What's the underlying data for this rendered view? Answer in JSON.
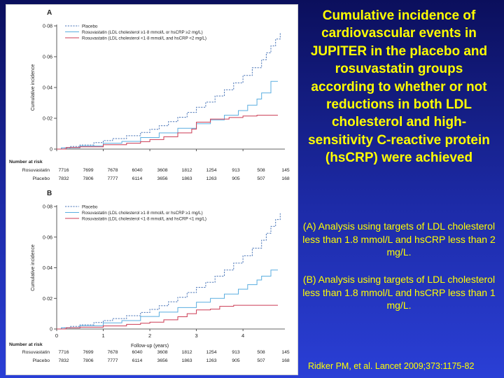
{
  "slide": {
    "title": "Cumulative incidence of cardiovascular events in JUPITER in the placebo and rosuvastatin groups according to whether or not reductions in both LDL cholesterol and high-sensitivity C-reactive protein (hsCRP) were achieved",
    "note_a": "(A) Analysis using targets of LDL cholesterol less than 1.8 mmol/L and hsCRP less than 2 mg/L.",
    "note_b": "(B) Analysis using targets of LDL cholesterol less than 1.8 mmol/L and hsCRP less than 1 mg/L.",
    "citation": "Ridker PM, et al. Lancet 2009;373:1175-82",
    "colors": {
      "background": "#1a2aa8",
      "text": "#ffff00"
    }
  },
  "chart_data": [
    {
      "type": "line",
      "panel_label": "A",
      "ylabel": "Cumulative incidence",
      "xlabel": "",
      "yticks": [
        "0",
        "0·02",
        "0·04",
        "0·06",
        "0·08"
      ],
      "ylim": [
        0,
        0.08
      ],
      "xlim": [
        0,
        4.9
      ],
      "show_xticks": false,
      "legend_position": "top-left",
      "series": [
        {
          "name": "Placebo",
          "color": "#4a76b8",
          "dashed": true,
          "x": [
            0,
            0.1,
            0.3,
            0.5,
            0.8,
            1.0,
            1.2,
            1.5,
            1.8,
            2.0,
            2.2,
            2.4,
            2.6,
            2.8,
            3.0,
            3.2,
            3.4,
            3.6,
            3.8,
            4.0,
            4.2,
            4.4,
            4.5,
            4.6,
            4.7,
            4.8
          ],
          "y": [
            0,
            0.0007,
            0.0017,
            0.0027,
            0.0042,
            0.0055,
            0.0068,
            0.0087,
            0.0108,
            0.0128,
            0.0152,
            0.0178,
            0.0207,
            0.0238,
            0.0272,
            0.0305,
            0.0345,
            0.0385,
            0.043,
            0.0478,
            0.0528,
            0.058,
            0.0625,
            0.067,
            0.0715,
            0.0755
          ]
        },
        {
          "name": "Rosuvastatin (LDL cholesterol ≥1·8 mmol/L or hsCRP ≥2 mg/L)",
          "color": "#5aaee0",
          "x": [
            0,
            0.1,
            0.5,
            1.0,
            1.4,
            1.8,
            2.2,
            2.6,
            3.0,
            3.3,
            3.6,
            3.9,
            4.1,
            4.3,
            4.4,
            4.6,
            4.75
          ],
          "y": [
            0,
            0.0008,
            0.002,
            0.0038,
            0.005,
            0.0075,
            0.0105,
            0.0135,
            0.0165,
            0.019,
            0.022,
            0.025,
            0.0285,
            0.0325,
            0.0365,
            0.044,
            0.044
          ]
        },
        {
          "name": "Rosuvastatin (LDL cholesterol <1·8 mmol/L and hsCRP <2 mg/L)",
          "color": "#cc3b53",
          "x": [
            0,
            0.2,
            0.5,
            1.0,
            1.5,
            1.8,
            2.0,
            2.3,
            2.6,
            2.9,
            3.0,
            3.3,
            3.7,
            4.0,
            4.3,
            4.75
          ],
          "y": [
            0,
            0.001,
            0.0015,
            0.0028,
            0.0038,
            0.0048,
            0.0062,
            0.008,
            0.0105,
            0.013,
            0.0175,
            0.0195,
            0.0205,
            0.0215,
            0.022,
            0.022
          ]
        }
      ],
      "risk_table": {
        "header": "Number at risk",
        "rows": [
          {
            "label": "Rosuvastatin",
            "values": [
              "7716",
              "7699",
              "7678",
              "6040",
              "3608",
              "1812",
              "1254",
              "913",
              "508",
              "145"
            ]
          },
          {
            "label": "Placebo",
            "values": [
              "7832",
              "7806",
              "7777",
              "6114",
              "3656",
              "1863",
              "1263",
              "905",
              "507",
              "168"
            ]
          }
        ]
      }
    },
    {
      "type": "line",
      "panel_label": "B",
      "ylabel": "Cumulative incidence",
      "xlabel": "Follow-up (years)",
      "yticks": [
        "0",
        "0·02",
        "0·04",
        "0·06",
        "0·08"
      ],
      "xticks": [
        "0",
        "1",
        "2",
        "3",
        "4"
      ],
      "ylim": [
        0,
        0.08
      ],
      "xlim": [
        0,
        4.9
      ],
      "show_xticks": true,
      "legend_position": "top-left",
      "series": [
        {
          "name": "Placebo",
          "color": "#4a76b8",
          "dashed": true,
          "x": [
            0,
            0.1,
            0.3,
            0.5,
            0.8,
            1.0,
            1.2,
            1.5,
            1.8,
            2.0,
            2.2,
            2.4,
            2.6,
            2.8,
            3.0,
            3.2,
            3.4,
            3.6,
            3.8,
            4.0,
            4.2,
            4.4,
            4.5,
            4.6,
            4.7,
            4.8
          ],
          "y": [
            0,
            0.0007,
            0.0017,
            0.0027,
            0.0042,
            0.0055,
            0.0068,
            0.0087,
            0.0108,
            0.0128,
            0.0152,
            0.0178,
            0.0207,
            0.0238,
            0.0272,
            0.0305,
            0.0345,
            0.0385,
            0.043,
            0.0478,
            0.0528,
            0.058,
            0.0625,
            0.067,
            0.0715,
            0.0755
          ]
        },
        {
          "name": "Rosuvastatin (LDL cholesterol ≥1·8 mmol/L or hsCRP ≥1 mg/L)",
          "color": "#5aaee0",
          "x": [
            0,
            0.1,
            0.5,
            1.0,
            1.4,
            1.8,
            2.2,
            2.6,
            3.0,
            3.3,
            3.6,
            3.9,
            4.1,
            4.3,
            4.4,
            4.6,
            4.75
          ],
          "y": [
            0,
            0.0008,
            0.0022,
            0.004,
            0.0055,
            0.0082,
            0.011,
            0.014,
            0.0175,
            0.02,
            0.0228,
            0.026,
            0.029,
            0.032,
            0.0345,
            0.0385,
            0.0385
          ]
        },
        {
          "name": "Rosuvastatin (LDL cholesterol <1·8 mmol/L and hsCRP <1 mg/L)",
          "color": "#cc3b53",
          "x": [
            0,
            0.2,
            0.5,
            1.0,
            1.5,
            1.8,
            2.0,
            2.3,
            2.6,
            2.8,
            3.0,
            3.3,
            3.5,
            3.8,
            4.1,
            4.75
          ],
          "y": [
            0,
            0.0008,
            0.0012,
            0.002,
            0.003,
            0.0038,
            0.0045,
            0.006,
            0.008,
            0.01,
            0.0125,
            0.013,
            0.0148,
            0.0155,
            0.0155,
            0.0155
          ]
        }
      ],
      "risk_table": {
        "header": "Number at risk",
        "rows": [
          {
            "label": "Rosuvastatin",
            "values": [
              "7716",
              "7699",
              "7678",
              "6040",
              "3608",
              "1812",
              "1254",
              "913",
              "508",
              "145"
            ]
          },
          {
            "label": "Placebo",
            "values": [
              "7832",
              "7806",
              "7777",
              "6114",
              "3656",
              "1863",
              "1263",
              "905",
              "507",
              "168"
            ]
          }
        ]
      }
    }
  ]
}
